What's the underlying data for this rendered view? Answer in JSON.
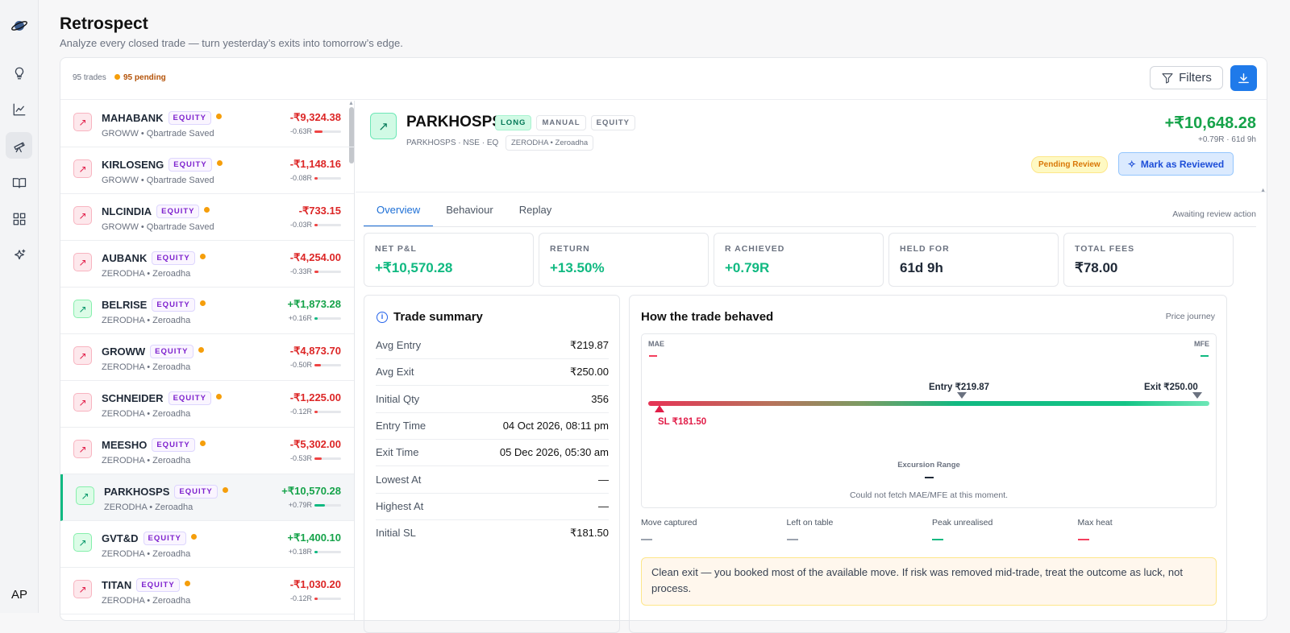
{
  "app": {
    "title": "Retrospect",
    "subtitle": "Analyze every closed trade — turn yesterday’s exits into tomorrow’s edge.",
    "user_initials": "AP"
  },
  "rail": {
    "icons": [
      "logo-icon",
      "lightbulb-icon",
      "chart-icon",
      "telescope-icon",
      "book-icon",
      "grid-icon",
      "sparkles-icon"
    ]
  },
  "toolbar": {
    "trade_count": "95 trades",
    "pending_count": "95 pending",
    "filters_label": "Filters"
  },
  "trades": [
    {
      "symbol": "MAHABANK",
      "badge": "EQUITY",
      "broker": "GROWW • Qbartrade Saved",
      "pnl": "-₹9,324.38",
      "r": "-0.63R",
      "r_value": -0.63,
      "dir": "loss"
    },
    {
      "symbol": "KIRLOSENG",
      "badge": "EQUITY",
      "broker": "GROWW • Qbartrade Saved",
      "pnl": "-₹1,148.16",
      "r": "-0.08R",
      "r_value": -0.08,
      "dir": "loss"
    },
    {
      "symbol": "NLCINDIA",
      "badge": "EQUITY",
      "broker": "GROWW • Qbartrade Saved",
      "pnl": "-₹733.15",
      "r": "-0.03R",
      "r_value": -0.03,
      "dir": "loss"
    },
    {
      "symbol": "AUBANK",
      "badge": "EQUITY",
      "broker": "ZERODHA • Zeroadha",
      "pnl": "-₹4,254.00",
      "r": "-0.33R",
      "r_value": -0.33,
      "dir": "loss"
    },
    {
      "symbol": "BELRISE",
      "badge": "EQUITY",
      "broker": "ZERODHA • Zeroadha",
      "pnl": "+₹1,873.28",
      "r": "+0.16R",
      "r_value": 0.16,
      "dir": "gain"
    },
    {
      "symbol": "GROWW",
      "badge": "EQUITY",
      "broker": "ZERODHA • Zeroadha",
      "pnl": "-₹4,873.70",
      "r": "-0.50R",
      "r_value": -0.5,
      "dir": "loss"
    },
    {
      "symbol": "SCHNEIDER",
      "badge": "EQUITY",
      "broker": "ZERODHA • Zeroadha",
      "pnl": "-₹1,225.00",
      "r": "-0.12R",
      "r_value": -0.12,
      "dir": "loss"
    },
    {
      "symbol": "MEESHO",
      "badge": "EQUITY",
      "broker": "ZERODHA • Zeroadha",
      "pnl": "-₹5,302.00",
      "r": "-0.53R",
      "r_value": -0.53,
      "dir": "loss"
    },
    {
      "symbol": "PARKHOSPS",
      "badge": "EQUITY",
      "broker": "ZERODHA • Zeroadha",
      "pnl": "+₹10,570.28",
      "r": "+0.79R",
      "r_value": 0.79,
      "dir": "gain",
      "selected": true
    },
    {
      "symbol": "GVT&D",
      "badge": "EQUITY",
      "broker": "ZERODHA • Zeroadha",
      "pnl": "+₹1,400.10",
      "r": "+0.18R",
      "r_value": 0.18,
      "dir": "gain"
    },
    {
      "symbol": "TITAN",
      "badge": "EQUITY",
      "broker": "ZERODHA • Zeroadha",
      "pnl": "-₹1,030.20",
      "r": "-0.12R",
      "r_value": -0.12,
      "dir": "loss"
    }
  ],
  "detail": {
    "symbol": "PARKHOSPS",
    "tags": [
      "LONG",
      "MANUAL",
      "EQUITY"
    ],
    "meta": "PARKHOSPS · NSE · EQ",
    "broker": "ZERODHA • Zeroadha",
    "pnl": "+₹10,648.28",
    "pnl_sub": "+0.79R · 61d 9h",
    "status": "Pending Review",
    "mark_label": "Mark as Reviewed",
    "tabs": [
      "Overview",
      "Behaviour",
      "Replay"
    ],
    "active_tab": "Overview",
    "awaiting": "Awaiting review action",
    "stats": [
      {
        "label": "NET P&L",
        "value": "+₹10,570.28",
        "tone": "g"
      },
      {
        "label": "RETURN",
        "value": "+13.50%",
        "tone": "g"
      },
      {
        "label": "R ACHIEVED",
        "value": "+0.79R",
        "tone": "g"
      },
      {
        "label": "HELD FOR",
        "value": "61d 9h",
        "tone": "d"
      },
      {
        "label": "TOTAL FEES",
        "value": "₹78.00",
        "tone": "d"
      }
    ],
    "summary": {
      "title": "Trade summary",
      "rows": [
        {
          "k": "Avg Entry",
          "v": "₹219.87"
        },
        {
          "k": "Avg Exit",
          "v": "₹250.00"
        },
        {
          "k": "Initial Qty",
          "v": "356"
        },
        {
          "k": "Entry Time",
          "v": "04 Oct 2026, 08:11 pm"
        },
        {
          "k": "Exit Time",
          "v": "05 Dec 2026, 05:30 am"
        },
        {
          "k": "Lowest At",
          "v": "—"
        },
        {
          "k": "Highest At",
          "v": "—"
        },
        {
          "k": "Initial SL",
          "v": "₹181.50"
        }
      ]
    },
    "behaviour": {
      "title": "How the trade behaved",
      "journey_label": "Price journey",
      "mae_label": "MAE",
      "mfe_label": "MFE",
      "entry_label": "Entry ₹219.87",
      "exit_label": "Exit ₹250.00",
      "sl_label": "SL ₹181.50",
      "range_label": "Excursion Range",
      "range_value": "—",
      "error": "Could not fetch MAE/MFE at this moment.",
      "metrics": [
        {
          "label": "Move captured",
          "value": "—",
          "color": "#9ca3af"
        },
        {
          "label": "Left on table",
          "value": "—",
          "color": "#9ca3af"
        },
        {
          "label": "Peak unrealised",
          "value": "—",
          "color": "#10b981"
        },
        {
          "label": "Max heat",
          "value": "—",
          "color": "#f43f5e"
        }
      ],
      "note": "Clean exit — you booked most of the available move. If risk was removed mid-trade, treat the outcome as luck, not process."
    }
  }
}
